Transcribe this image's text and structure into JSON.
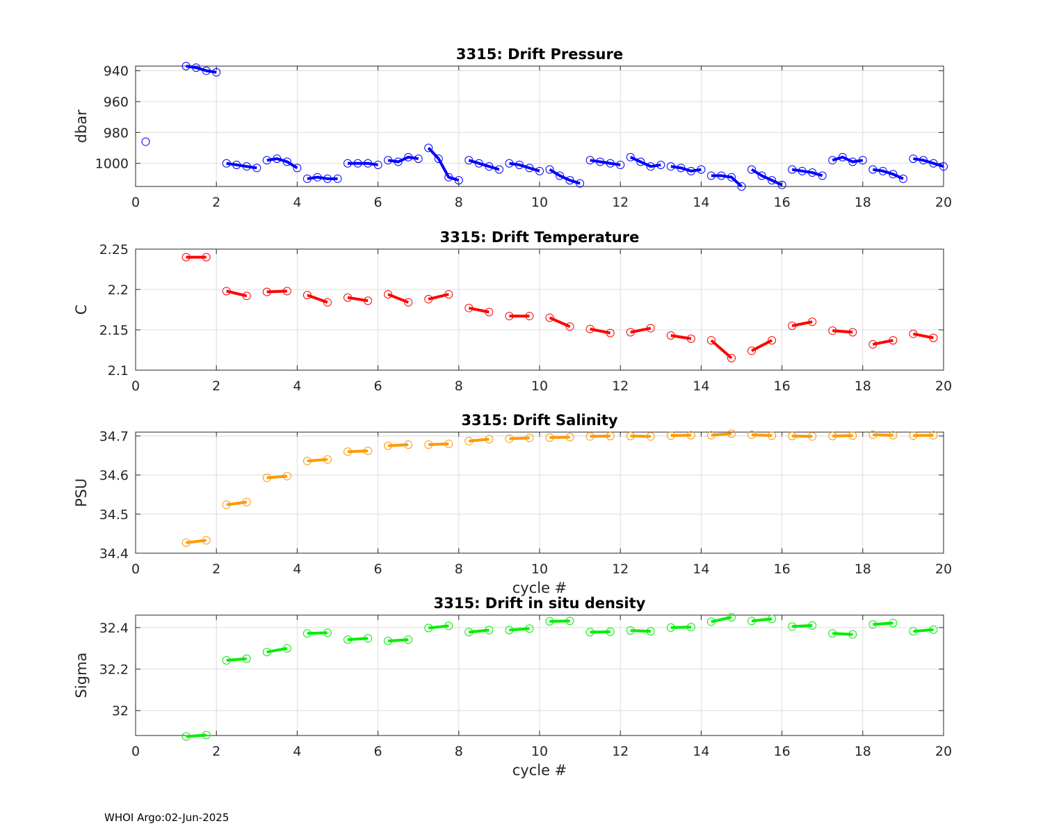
{
  "footer": "WHOI Argo:02-Jun-2025",
  "chart_data": [
    {
      "type": "line",
      "title": "3315: Drift Pressure",
      "xlabel": "",
      "ylabel": "dbar",
      "xlim": [
        0,
        20
      ],
      "ylim": [
        1015,
        937
      ],
      "y_reversed": true,
      "xticks": [
        "0",
        "2",
        "4",
        "6",
        "8",
        "10",
        "12",
        "14",
        "16",
        "18",
        "20"
      ],
      "yticks": [
        "940",
        "960",
        "980",
        "1000"
      ],
      "color": "#0000ff",
      "marker": "circle",
      "grid": true,
      "segments": [
        {
          "x": [
            0.25
          ],
          "y": [
            986
          ]
        },
        {
          "x": [
            1.25,
            1.5,
            1.75,
            2.0
          ],
          "y": [
            937,
            938,
            940,
            941
          ]
        },
        {
          "x": [
            2.25,
            2.5,
            2.75,
            3.0
          ],
          "y": [
            1000,
            1001,
            1002,
            1003
          ]
        },
        {
          "x": [
            3.25,
            3.5,
            3.75,
            4.0
          ],
          "y": [
            998,
            997,
            999,
            1003
          ]
        },
        {
          "x": [
            4.25,
            4.5,
            4.75,
            5.0
          ],
          "y": [
            1010,
            1009,
            1010,
            1010
          ]
        },
        {
          "x": [
            5.25,
            5.5,
            5.75,
            6.0
          ],
          "y": [
            1000,
            1000,
            1000,
            1001
          ]
        },
        {
          "x": [
            6.25,
            6.5,
            6.75,
            7.0
          ],
          "y": [
            998,
            999,
            996,
            997
          ]
        },
        {
          "x": [
            7.25,
            7.5,
            7.75,
            8.0
          ],
          "y": [
            990,
            997,
            1009,
            1011
          ]
        },
        {
          "x": [
            8.25,
            8.5,
            8.75,
            9.0
          ],
          "y": [
            998,
            1000,
            1002,
            1004
          ]
        },
        {
          "x": [
            9.25,
            9.5,
            9.75,
            10.0
          ],
          "y": [
            1000,
            1001,
            1003,
            1005
          ]
        },
        {
          "x": [
            10.25,
            10.5,
            10.75,
            11.0
          ],
          "y": [
            1004,
            1008,
            1011,
            1013
          ]
        },
        {
          "x": [
            11.25,
            11.5,
            11.75,
            12.0
          ],
          "y": [
            998,
            999,
            1000,
            1001
          ]
        },
        {
          "x": [
            12.25,
            12.5,
            12.75,
            13.0
          ],
          "y": [
            996,
            999,
            1002,
            1001
          ]
        },
        {
          "x": [
            13.25,
            13.5,
            13.75,
            14.0
          ],
          "y": [
            1002,
            1003,
            1005,
            1004
          ]
        },
        {
          "x": [
            14.25,
            14.5,
            14.75,
            15.0
          ],
          "y": [
            1008,
            1008,
            1009,
            1015
          ]
        },
        {
          "x": [
            15.25,
            15.5,
            15.75,
            16.0
          ],
          "y": [
            1004,
            1008,
            1011,
            1014
          ]
        },
        {
          "x": [
            16.25,
            16.5,
            16.75,
            17.0
          ],
          "y": [
            1004,
            1005,
            1006,
            1008
          ]
        },
        {
          "x": [
            17.25,
            17.5,
            17.75,
            18.0
          ],
          "y": [
            998,
            996,
            999,
            998
          ]
        },
        {
          "x": [
            18.25,
            18.5,
            18.75,
            19.0
          ],
          "y": [
            1004,
            1005,
            1007,
            1010
          ]
        },
        {
          "x": [
            19.25,
            19.5,
            19.75,
            20.0
          ],
          "y": [
            997,
            998,
            1000,
            1002
          ]
        }
      ]
    },
    {
      "type": "line",
      "title": "3315: Drift Temperature",
      "xlabel": "",
      "ylabel": "C",
      "xlim": [
        0,
        20
      ],
      "ylim": [
        2.1,
        2.25
      ],
      "xticks": [
        "0",
        "2",
        "4",
        "6",
        "8",
        "10",
        "12",
        "14",
        "16",
        "18",
        "20"
      ],
      "yticks": [
        "2.1",
        "2.15",
        "2.2",
        "2.25"
      ],
      "color": "#ff0000",
      "marker": "circle",
      "grid": true,
      "segments": [
        {
          "x": [
            1.25,
            1.75
          ],
          "y": [
            2.24,
            2.24
          ]
        },
        {
          "x": [
            2.25,
            2.75
          ],
          "y": [
            2.198,
            2.192
          ]
        },
        {
          "x": [
            3.25,
            3.75
          ],
          "y": [
            2.197,
            2.198
          ]
        },
        {
          "x": [
            4.25,
            4.75
          ],
          "y": [
            2.193,
            2.184
          ]
        },
        {
          "x": [
            5.25,
            5.75
          ],
          "y": [
            2.19,
            2.186
          ]
        },
        {
          "x": [
            6.25,
            6.75
          ],
          "y": [
            2.194,
            2.184
          ]
        },
        {
          "x": [
            7.25,
            7.75
          ],
          "y": [
            2.188,
            2.194
          ]
        },
        {
          "x": [
            8.25,
            8.75
          ],
          "y": [
            2.177,
            2.172
          ]
        },
        {
          "x": [
            9.25,
            9.75
          ],
          "y": [
            2.167,
            2.167
          ]
        },
        {
          "x": [
            10.25,
            10.75
          ],
          "y": [
            2.165,
            2.154
          ]
        },
        {
          "x": [
            11.25,
            11.75
          ],
          "y": [
            2.151,
            2.146
          ]
        },
        {
          "x": [
            12.25,
            12.75
          ],
          "y": [
            2.147,
            2.152
          ]
        },
        {
          "x": [
            13.25,
            13.75
          ],
          "y": [
            2.143,
            2.139
          ]
        },
        {
          "x": [
            14.25,
            14.75
          ],
          "y": [
            2.137,
            2.115
          ]
        },
        {
          "x": [
            15.25,
            15.75
          ],
          "y": [
            2.124,
            2.137
          ]
        },
        {
          "x": [
            16.25,
            16.75
          ],
          "y": [
            2.155,
            2.16
          ]
        },
        {
          "x": [
            17.25,
            17.75
          ],
          "y": [
            2.149,
            2.147
          ]
        },
        {
          "x": [
            18.25,
            18.75
          ],
          "y": [
            2.132,
            2.137
          ]
        },
        {
          "x": [
            19.25,
            19.75
          ],
          "y": [
            2.145,
            2.14
          ]
        }
      ]
    },
    {
      "type": "line",
      "title": "3315: Drift Salinity",
      "xlabel": "cycle #",
      "ylabel": "PSU",
      "xlim": [
        0,
        20
      ],
      "ylim": [
        34.4,
        34.71
      ],
      "xticks": [
        "0",
        "2",
        "4",
        "6",
        "8",
        "10",
        "12",
        "14",
        "16",
        "18",
        "20"
      ],
      "yticks": [
        "34.4",
        "34.5",
        "34.6",
        "34.7"
      ],
      "color": "#ff9900",
      "marker": "circle",
      "grid": true,
      "segments": [
        {
          "x": [
            1.25,
            1.75
          ],
          "y": [
            34.427,
            34.433
          ]
        },
        {
          "x": [
            2.25,
            2.75
          ],
          "y": [
            34.524,
            34.531
          ]
        },
        {
          "x": [
            3.25,
            3.75
          ],
          "y": [
            34.593,
            34.597
          ]
        },
        {
          "x": [
            4.25,
            4.75
          ],
          "y": [
            34.636,
            34.64
          ]
        },
        {
          "x": [
            5.25,
            5.75
          ],
          "y": [
            34.66,
            34.662
          ]
        },
        {
          "x": [
            6.25,
            6.75
          ],
          "y": [
            34.675,
            34.678
          ]
        },
        {
          "x": [
            7.25,
            7.75
          ],
          "y": [
            34.678,
            34.68
          ]
        },
        {
          "x": [
            8.25,
            8.75
          ],
          "y": [
            34.687,
            34.692
          ]
        },
        {
          "x": [
            9.25,
            9.75
          ],
          "y": [
            34.693,
            34.695
          ]
        },
        {
          "x": [
            10.25,
            10.75
          ],
          "y": [
            34.696,
            34.697
          ]
        },
        {
          "x": [
            11.25,
            11.75
          ],
          "y": [
            34.699,
            34.7
          ]
        },
        {
          "x": [
            12.25,
            12.75
          ],
          "y": [
            34.7,
            34.699
          ]
        },
        {
          "x": [
            13.25,
            13.75
          ],
          "y": [
            34.701,
            34.702
          ]
        },
        {
          "x": [
            14.25,
            14.75
          ],
          "y": [
            34.702,
            34.706
          ]
        },
        {
          "x": [
            15.25,
            15.75
          ],
          "y": [
            34.703,
            34.701
          ]
        },
        {
          "x": [
            16.25,
            16.75
          ],
          "y": [
            34.7,
            34.699
          ]
        },
        {
          "x": [
            17.25,
            17.75
          ],
          "y": [
            34.7,
            34.701
          ]
        },
        {
          "x": [
            18.25,
            18.75
          ],
          "y": [
            34.703,
            34.702
          ]
        },
        {
          "x": [
            19.25,
            19.75
          ],
          "y": [
            34.701,
            34.702
          ]
        }
      ]
    },
    {
      "type": "line",
      "title": "3315: Drift in situ density",
      "xlabel": "cycle #",
      "ylabel": "Sigma",
      "xlim": [
        0,
        20
      ],
      "ylim": [
        31.88,
        32.46
      ],
      "xticks": [
        "0",
        "2",
        "4",
        "6",
        "8",
        "10",
        "12",
        "14",
        "16",
        "18",
        "20"
      ],
      "yticks": [
        "32",
        "32.2",
        "32.4"
      ],
      "color": "#00ee00",
      "marker": "circle",
      "grid": true,
      "segments": [
        {
          "x": [
            1.25,
            1.75
          ],
          "y": [
            31.875,
            31.882
          ]
        },
        {
          "x": [
            2.25,
            2.75
          ],
          "y": [
            32.242,
            32.25
          ]
        },
        {
          "x": [
            3.25,
            3.75
          ],
          "y": [
            32.282,
            32.3
          ]
        },
        {
          "x": [
            4.25,
            4.75
          ],
          "y": [
            32.372,
            32.375
          ]
        },
        {
          "x": [
            5.25,
            5.75
          ],
          "y": [
            32.342,
            32.348
          ]
        },
        {
          "x": [
            6.25,
            6.75
          ],
          "y": [
            32.335,
            32.342
          ]
        },
        {
          "x": [
            7.25,
            7.75
          ],
          "y": [
            32.398,
            32.408
          ]
        },
        {
          "x": [
            8.25,
            8.75
          ],
          "y": [
            32.378,
            32.388
          ]
        },
        {
          "x": [
            9.25,
            9.75
          ],
          "y": [
            32.388,
            32.395
          ]
        },
        {
          "x": [
            10.25,
            10.75
          ],
          "y": [
            32.43,
            32.432
          ]
        },
        {
          "x": [
            11.25,
            11.75
          ],
          "y": [
            32.378,
            32.38
          ]
        },
        {
          "x": [
            12.25,
            12.75
          ],
          "y": [
            32.386,
            32.382
          ]
        },
        {
          "x": [
            13.25,
            13.75
          ],
          "y": [
            32.4,
            32.402
          ]
        },
        {
          "x": [
            14.25,
            14.75
          ],
          "y": [
            32.428,
            32.45
          ]
        },
        {
          "x": [
            15.25,
            15.75
          ],
          "y": [
            32.432,
            32.442
          ]
        },
        {
          "x": [
            16.25,
            16.75
          ],
          "y": [
            32.405,
            32.41
          ]
        },
        {
          "x": [
            17.25,
            17.75
          ],
          "y": [
            32.372,
            32.367
          ]
        },
        {
          "x": [
            18.25,
            18.75
          ],
          "y": [
            32.415,
            32.422
          ]
        },
        {
          "x": [
            19.25,
            19.75
          ],
          "y": [
            32.382,
            32.39
          ]
        }
      ]
    }
  ]
}
